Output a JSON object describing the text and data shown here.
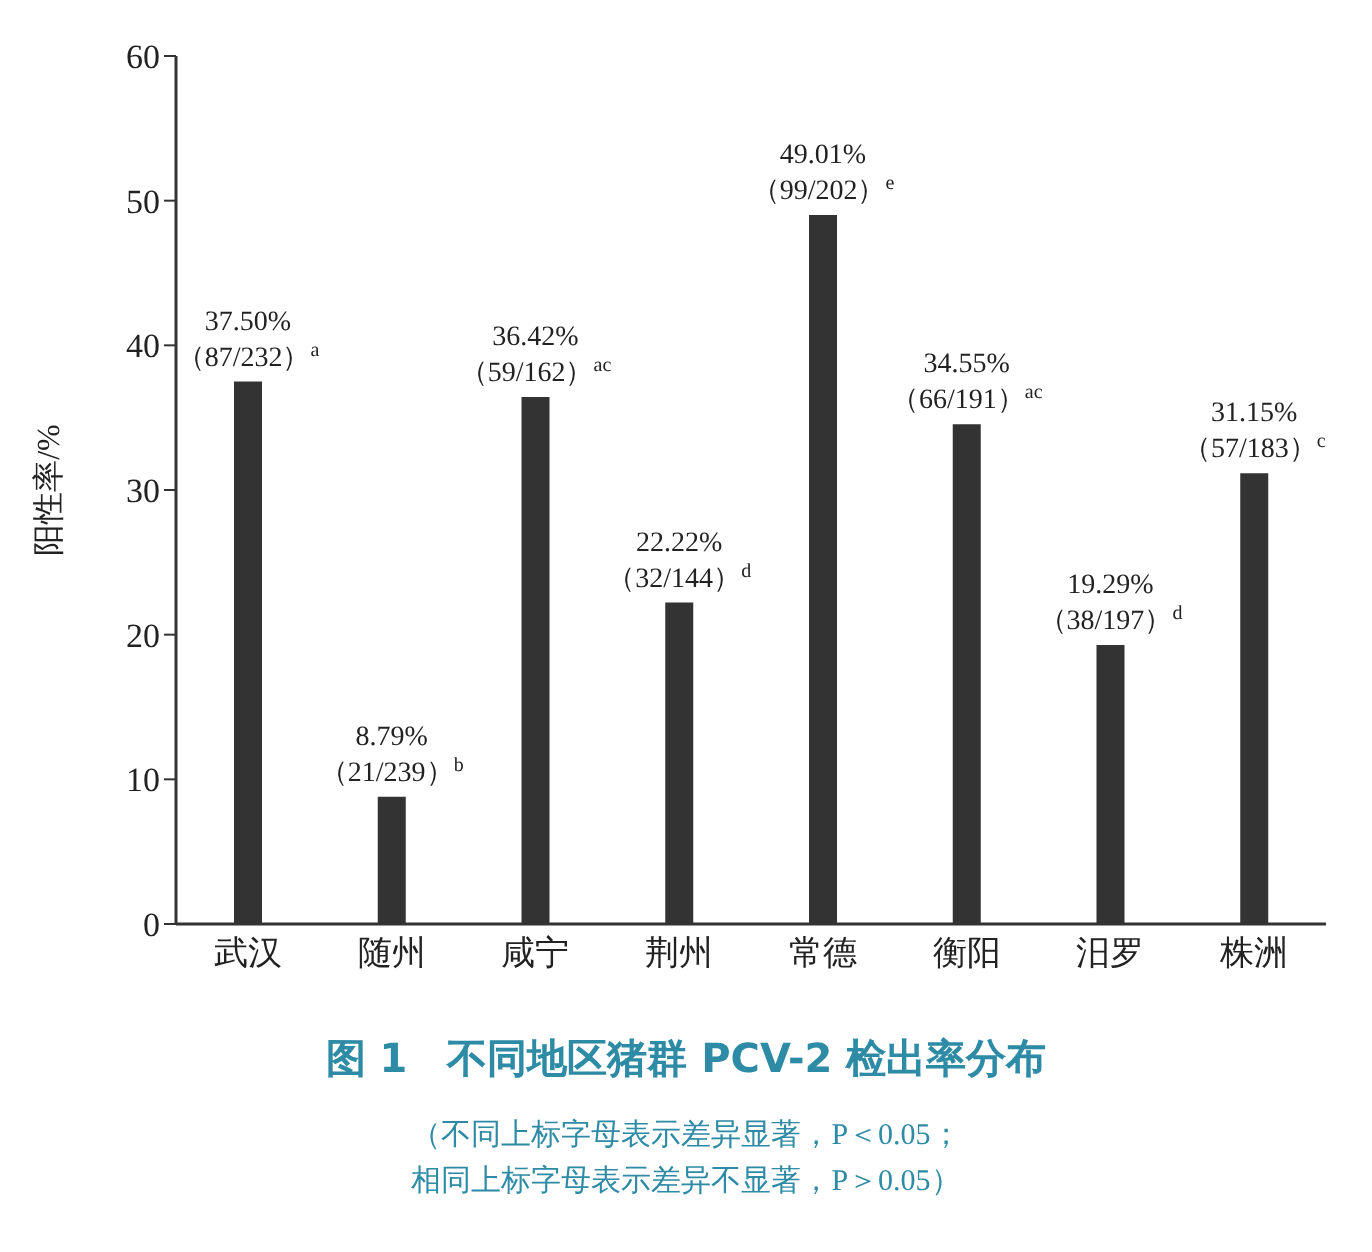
{
  "chart_data": {
    "type": "bar",
    "title": "图 1　不同地区猪群 PCV-2 检出率分布",
    "ylabel": "阳性率/%",
    "categories": [
      "武汉",
      "随州",
      "咸宁",
      "荆州",
      "常德",
      "衡阳",
      "汨罗",
      "株洲"
    ],
    "values": [
      37.5,
      8.79,
      36.42,
      22.22,
      49.01,
      34.55,
      19.29,
      31.15
    ],
    "value_labels": [
      "37.50%\n（87/232）$^{a}$",
      "8.79%\n（21/239）$^{b}$",
      "36.42%\n（59/162）$^{ac}$",
      "22.22%\n（32/144）$^{d}$",
      "49.01%\n（99/202）$^{e}$",
      "34.55%\n（66/191）$^{ac}$",
      "19.29%\n（38/197）$^{d}$",
      "31.15%\n（57/183）$^{c}$"
    ],
    "color": "#333333",
    "ylim": [
      0,
      60
    ],
    "yticks": [
      0,
      10,
      20,
      30,
      40,
      50,
      60
    ],
    "grid": false,
    "legend": false,
    "annotations": [
      "（不同上标字母表示差异显著，P＜0.05；",
      "相同上标字母表示差异不显著，P＞0.05）"
    ]
  }
}
